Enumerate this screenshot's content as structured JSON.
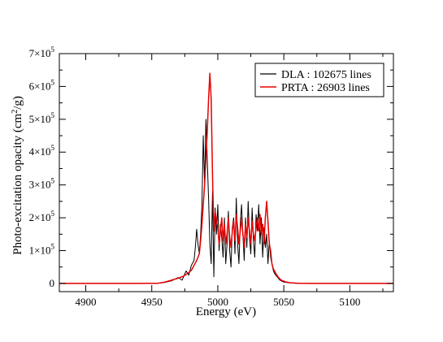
{
  "chart_data": {
    "type": "line",
    "xlabel": "Energy (eV)",
    "ylabel_main": "Photo-excitation opacity (cm",
    "ylabel_sup": "2",
    "ylabel_tail": "/g)",
    "xlim": [
      4880,
      5133
    ],
    "ylim": [
      -25000,
      700000
    ],
    "x_ticks": [
      4900,
      4950,
      5000,
      5050,
      5100
    ],
    "x_tick_labels": [
      "4900",
      "4950",
      "5000",
      "5050",
      "5100"
    ],
    "y_ticks": [
      {
        "value": 0,
        "base": "0",
        "exp": ""
      },
      {
        "value": 100000,
        "base": "1×10",
        "exp": "5"
      },
      {
        "value": 200000,
        "base": "2×10",
        "exp": "5"
      },
      {
        "value": 300000,
        "base": "3×10",
        "exp": "5"
      },
      {
        "value": 400000,
        "base": "4×10",
        "exp": "5"
      },
      {
        "value": 500000,
        "base": "5×10",
        "exp": "5"
      },
      {
        "value": 600000,
        "base": "6×10",
        "exp": "5"
      },
      {
        "value": 700000,
        "base": "7×10",
        "exp": "5"
      }
    ],
    "legend_position": "top-right",
    "series": [
      {
        "name": "DLA : 102675 lines",
        "color": "#000000",
        "points": [
          [
            4880,
            0
          ],
          [
            4940,
            0
          ],
          [
            4955,
            500
          ],
          [
            4960,
            3000
          ],
          [
            4965,
            8000
          ],
          [
            4970,
            18000
          ],
          [
            4973,
            10000
          ],
          [
            4976,
            38000
          ],
          [
            4978,
            25000
          ],
          [
            4980,
            55000
          ],
          [
            4982,
            70000
          ],
          [
            4983,
            110000
          ],
          [
            4984,
            165000
          ],
          [
            4985,
            120000
          ],
          [
            4986,
            90000
          ],
          [
            4987,
            150000
          ],
          [
            4988,
            240000
          ],
          [
            4989,
            450000
          ],
          [
            4990,
            300000
          ],
          [
            4991,
            500000
          ],
          [
            4992,
            380000
          ],
          [
            4993,
            260000
          ],
          [
            4994,
            120000
          ],
          [
            4995,
            60000
          ],
          [
            4996,
            280000
          ],
          [
            4997,
            20000
          ],
          [
            4998,
            230000
          ],
          [
            4999,
            150000
          ],
          [
            5000,
            240000
          ],
          [
            5001,
            100000
          ],
          [
            5002,
            180000
          ],
          [
            5003,
            140000
          ],
          [
            5004,
            80000
          ],
          [
            5005,
            200000
          ],
          [
            5006,
            60000
          ],
          [
            5007,
            120000
          ],
          [
            5008,
            220000
          ],
          [
            5009,
            100000
          ],
          [
            5010,
            50000
          ],
          [
            5011,
            170000
          ],
          [
            5012,
            200000
          ],
          [
            5013,
            90000
          ],
          [
            5014,
            260000
          ],
          [
            5015,
            120000
          ],
          [
            5016,
            60000
          ],
          [
            5017,
            180000
          ],
          [
            5018,
            240000
          ],
          [
            5019,
            150000
          ],
          [
            5020,
            70000
          ],
          [
            5021,
            200000
          ],
          [
            5022,
            110000
          ],
          [
            5023,
            250000
          ],
          [
            5024,
            140000
          ],
          [
            5025,
            90000
          ],
          [
            5026,
            230000
          ],
          [
            5027,
            130000
          ],
          [
            5028,
            80000
          ],
          [
            5029,
            210000
          ],
          [
            5030,
            160000
          ],
          [
            5031,
            240000
          ],
          [
            5032,
            120000
          ],
          [
            5033,
            200000
          ],
          [
            5034,
            80000
          ],
          [
            5035,
            170000
          ],
          [
            5036,
            110000
          ],
          [
            5037,
            150000
          ],
          [
            5038,
            60000
          ],
          [
            5039,
            130000
          ],
          [
            5040,
            80000
          ],
          [
            5041,
            60000
          ],
          [
            5042,
            40000
          ],
          [
            5043,
            30000
          ],
          [
            5045,
            20000
          ],
          [
            5047,
            10000
          ],
          [
            5050,
            4000
          ],
          [
            5055,
            1500
          ],
          [
            5060,
            500
          ],
          [
            5070,
            0
          ],
          [
            5133,
            0
          ]
        ]
      },
      {
        "name": "PRTA : 26903 lines",
        "color": "#e80000",
        "points": [
          [
            4880,
            0
          ],
          [
            4940,
            0
          ],
          [
            4955,
            800
          ],
          [
            4960,
            4000
          ],
          [
            4965,
            10000
          ],
          [
            4970,
            16000
          ],
          [
            4974,
            22000
          ],
          [
            4977,
            30000
          ],
          [
            4980,
            40000
          ],
          [
            4982,
            55000
          ],
          [
            4984,
            70000
          ],
          [
            4986,
            90000
          ],
          [
            4987,
            130000
          ],
          [
            4988,
            180000
          ],
          [
            4989,
            240000
          ],
          [
            4990,
            300000
          ],
          [
            4991,
            380000
          ],
          [
            4992,
            460000
          ],
          [
            4993,
            560000
          ],
          [
            4994,
            640000
          ],
          [
            4995,
            560000
          ],
          [
            4996,
            330000
          ],
          [
            4997,
            160000
          ],
          [
            4998,
            220000
          ],
          [
            4999,
            190000
          ],
          [
            5000,
            170000
          ],
          [
            5001,
            120000
          ],
          [
            5002,
            160000
          ],
          [
            5003,
            200000
          ],
          [
            5004,
            130000
          ],
          [
            5005,
            180000
          ],
          [
            5006,
            120000
          ],
          [
            5007,
            150000
          ],
          [
            5008,
            200000
          ],
          [
            5009,
            140000
          ],
          [
            5010,
            110000
          ],
          [
            5011,
            160000
          ],
          [
            5012,
            190000
          ],
          [
            5013,
            130000
          ],
          [
            5014,
            210000
          ],
          [
            5015,
            170000
          ],
          [
            5016,
            120000
          ],
          [
            5017,
            160000
          ],
          [
            5018,
            200000
          ],
          [
            5019,
            150000
          ],
          [
            5020,
            110000
          ],
          [
            5021,
            180000
          ],
          [
            5022,
            140000
          ],
          [
            5023,
            200000
          ],
          [
            5024,
            160000
          ],
          [
            5025,
            120000
          ],
          [
            5026,
            190000
          ],
          [
            5027,
            150000
          ],
          [
            5028,
            130000
          ],
          [
            5029,
            170000
          ],
          [
            5030,
            200000
          ],
          [
            5031,
            160000
          ],
          [
            5032,
            210000
          ],
          [
            5033,
            150000
          ],
          [
            5034,
            180000
          ],
          [
            5035,
            120000
          ],
          [
            5036,
            200000
          ],
          [
            5037,
            250000
          ],
          [
            5038,
            190000
          ],
          [
            5039,
            120000
          ],
          [
            5040,
            100000
          ],
          [
            5041,
            60000
          ],
          [
            5042,
            45000
          ],
          [
            5044,
            30000
          ],
          [
            5046,
            18000
          ],
          [
            5048,
            10000
          ],
          [
            5051,
            5000
          ],
          [
            5055,
            2000
          ],
          [
            5060,
            800
          ],
          [
            5070,
            0
          ],
          [
            5133,
            0
          ]
        ]
      }
    ]
  }
}
